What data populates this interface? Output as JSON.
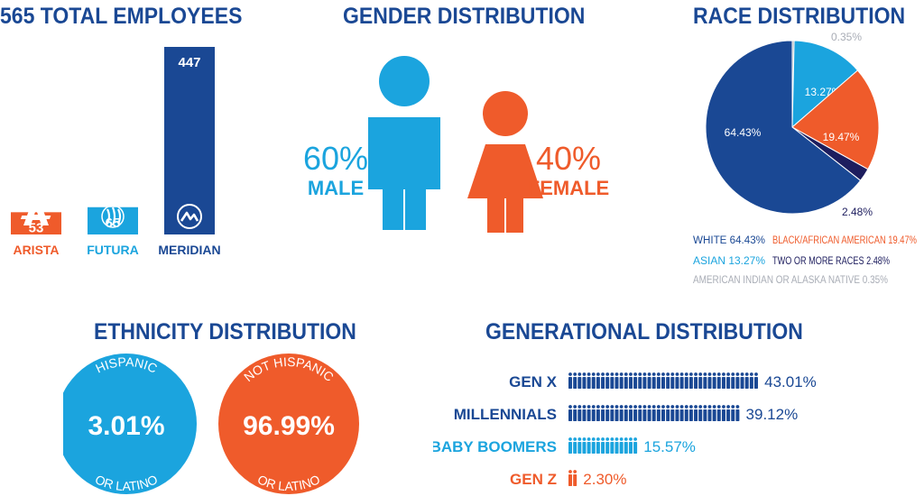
{
  "colors": {
    "navy": "#1a4894",
    "dark_navy": "#1d1d5e",
    "light_blue": "#1ba4de",
    "orange": "#ef5b2b",
    "gray": "#a9adb6"
  },
  "employees": {
    "title": "565 TOTAL EMPLOYEES",
    "chart_data": {
      "type": "bar",
      "categories": [
        "ARISTA",
        "FUTURA",
        "MERIDIAN"
      ],
      "values": [
        53,
        65,
        447
      ],
      "colors": [
        "#ef5b2b",
        "#1ba4de",
        "#1a4894"
      ],
      "icons": [
        "arista-logo-icon",
        "futura-logo-icon",
        "meridian-logo-icon"
      ]
    }
  },
  "gender": {
    "title": "GENDER DISTRIBUTION",
    "chart_data": {
      "type": "pictogram",
      "categories": [
        "MALE",
        "FEMALE"
      ],
      "values": [
        60,
        40
      ],
      "value_labels": [
        "60%",
        "40%"
      ],
      "colors": [
        "#1ba4de",
        "#ef5b2b"
      ],
      "icons": [
        "male-figure-icon",
        "female-figure-icon"
      ]
    }
  },
  "race": {
    "title": "RACE DISTRIBUTION",
    "chart_data": {
      "type": "pie",
      "categories": [
        "WHITE",
        "BLACK/AFRICAN AMERICAN",
        "ASIAN",
        "TWO OR MORE RACES",
        "AMERICAN INDIAN OR ALASKA NATIVE"
      ],
      "values": [
        64.43,
        19.47,
        13.27,
        2.48,
        0.35
      ],
      "slice_labels": [
        "64.43%",
        "19.47%",
        "13.27%",
        "2.48%",
        "0.35%"
      ],
      "legend": [
        "WHITE 64.43%",
        "BLACK/AFRICAN AMERICAN 19.47%",
        "ASIAN 13.27%",
        "TWO OR MORE RACES 2.48%",
        "AMERICAN INDIAN OR ALASKA NATIVE 0.35%"
      ],
      "colors": [
        "#1a4894",
        "#ef5b2b",
        "#1ba4de",
        "#1d1d5e",
        "#a9adb6"
      ],
      "legend_placement": "bottom"
    }
  },
  "ethnicity": {
    "title": "ETHNICITY DISTRIBUTION",
    "chart_data": {
      "type": "circles",
      "categories": [
        "HISPANIC OR LATINO",
        "NOT HISPANIC OR LATINO"
      ],
      "values": [
        3.01,
        96.99
      ],
      "circles": [
        {
          "top": "HISPANIC",
          "value": "3.01%",
          "bottom": "OR LATINO",
          "color": "#1ba4de"
        },
        {
          "top": "NOT HISPANIC",
          "value": "96.99%",
          "bottom": "OR LATINO",
          "color": "#ef5b2b"
        }
      ]
    }
  },
  "generation": {
    "title": "GENERATIONAL DISTRIBUTION",
    "chart_data": {
      "type": "pictogram",
      "categories": [
        "GEN X",
        "MILLENNIALS",
        "BABY BOOMERS",
        "GEN Z"
      ],
      "values": [
        43.01,
        39.12,
        15.57,
        2.3
      ],
      "value_labels": [
        "43.01%",
        "39.12%",
        "15.57%",
        "2.30%"
      ],
      "colors": [
        "#1a4894",
        "#1a4894",
        "#1ba4de",
        "#ef5b2b"
      ],
      "icon": "person-icon"
    }
  }
}
